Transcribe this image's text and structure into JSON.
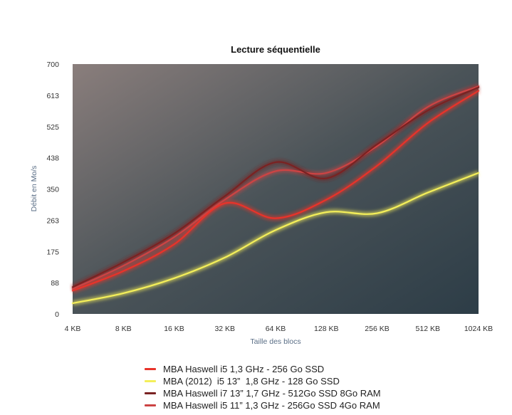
{
  "chart_data": {
    "type": "line",
    "title": "Lecture séquentielle",
    "xlabel": "Taille des blocs",
    "ylabel": "Débit en Mo/s",
    "categories": [
      "4 KB",
      "8 KB",
      "16 KB",
      "32 KB",
      "64 KB",
      "128 KB",
      "256 KB",
      "512 KB",
      "1024 KB"
    ],
    "y_ticks": [
      "0",
      "88",
      "175",
      "263",
      "350",
      "438",
      "525",
      "613",
      "700"
    ],
    "ylim": [
      0,
      700
    ],
    "grid": false,
    "legend_position": "bottom",
    "series": [
      {
        "name": "MBA Haswell i5 1,3 GHz - 256 Go SSD",
        "color": "#e8332a",
        "values": [
          65,
          120,
          195,
          310,
          268,
          320,
          415,
          535,
          625
        ]
      },
      {
        "name": "MBA (2012)  i5 13”  1,8 GHz - 128 Go SSD",
        "color": "#f4ef5a",
        "values": [
          30,
          58,
          100,
          158,
          235,
          285,
          282,
          340,
          395
        ]
      },
      {
        "name": "MBA Haswell i7 13” 1,7 GHz - 512Go SSD 8Go RAM",
        "color": "#7a2222",
        "values": [
          75,
          145,
          225,
          330,
          425,
          380,
          475,
          570,
          635
        ]
      },
      {
        "name": "MBA Haswell i5 11” 1,3 GHz - 256Go SSD 4Go RAM",
        "color": "#cc4444",
        "values": [
          70,
          135,
          215,
          320,
          400,
          395,
          470,
          580,
          638
        ]
      }
    ]
  }
}
